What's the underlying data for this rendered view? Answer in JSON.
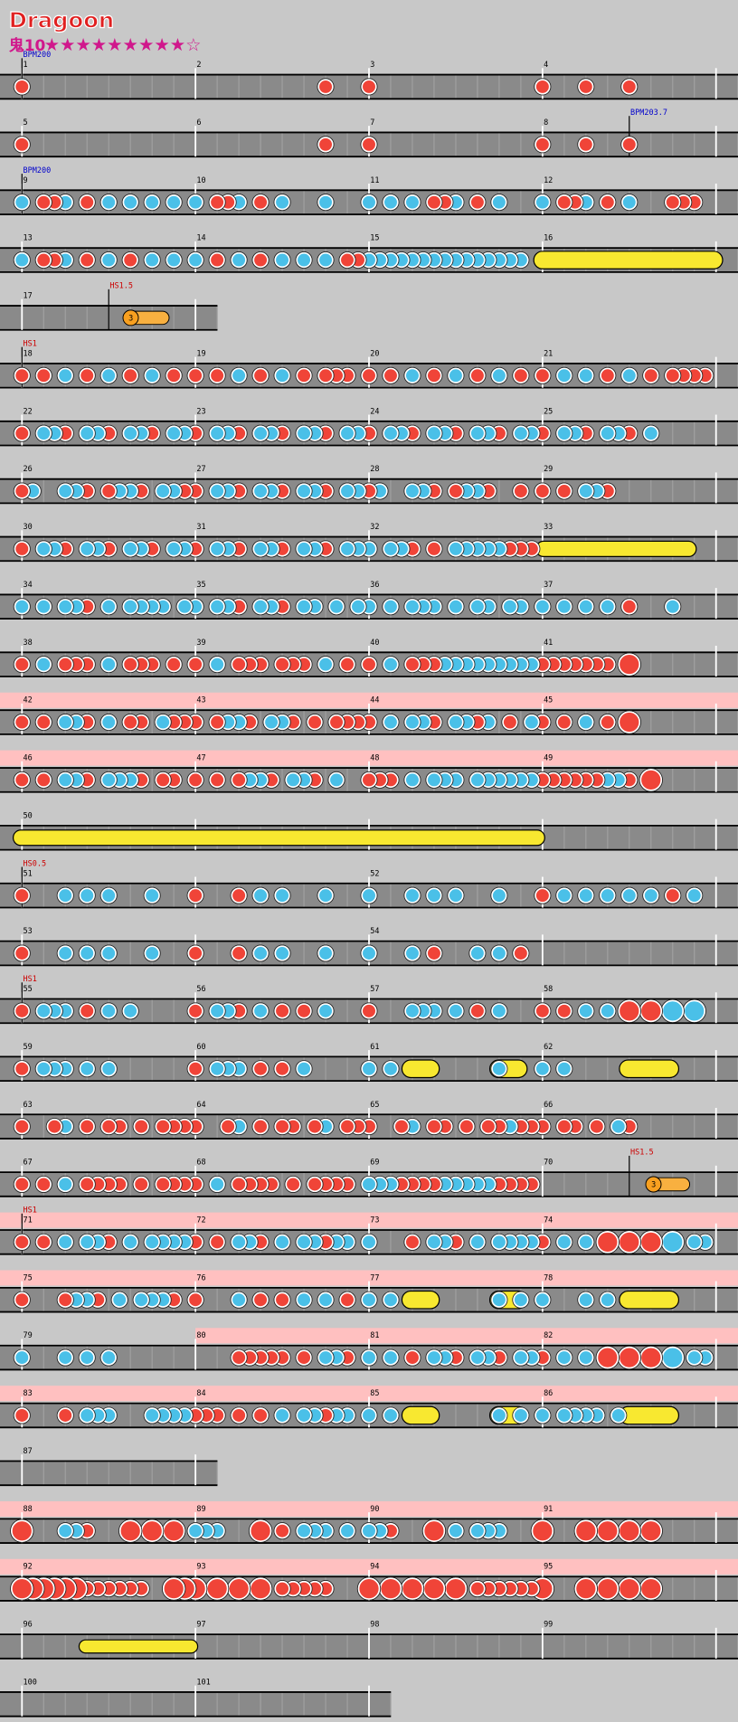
{
  "header": {
    "title": "Dragoon",
    "level": "鬼10",
    "stars": "★★★★★★★★★☆"
  },
  "rows": [
    {
      "measures": [
        1,
        2,
        3,
        4
      ],
      "marks": [
        "BPM200"
      ]
    },
    {
      "measures": [
        5,
        6,
        7,
        8
      ],
      "marks": [
        "BPM203.7"
      ]
    },
    {
      "measures": [
        9,
        10,
        11,
        12
      ],
      "marks": [
        "BPM200"
      ]
    },
    {
      "measures": [
        13,
        14,
        15,
        16
      ],
      "marks": []
    },
    {
      "measures": [
        17
      ],
      "marks": [
        "HS1.5"
      ],
      "balloon": "3"
    },
    {
      "measures": [
        18,
        19,
        20,
        21
      ],
      "marks": [
        "HS1"
      ]
    },
    {
      "measures": [
        22,
        23,
        24,
        25
      ],
      "marks": []
    },
    {
      "measures": [
        26,
        27,
        28,
        29
      ],
      "marks": []
    },
    {
      "measures": [
        30,
        31,
        32,
        33
      ],
      "marks": []
    },
    {
      "measures": [
        34,
        35,
        36,
        37
      ],
      "marks": []
    },
    {
      "measures": [
        38,
        39,
        40,
        41
      ],
      "marks": []
    },
    {
      "measures": [
        42,
        43,
        44,
        45
      ],
      "marks": []
    },
    {
      "measures": [
        46,
        47,
        48,
        49
      ],
      "marks": []
    },
    {
      "measures": [
        50
      ],
      "marks": []
    },
    {
      "measures": [
        51,
        52
      ],
      "marks": [
        "HS0.5"
      ]
    },
    {
      "measures": [
        53,
        54
      ],
      "marks": []
    },
    {
      "measures": [
        55,
        56,
        57,
        58
      ],
      "marks": [
        "HS1"
      ]
    },
    {
      "measures": [
        59,
        60,
        61,
        62
      ],
      "marks": []
    },
    {
      "measures": [
        63,
        64,
        65,
        66
      ],
      "marks": []
    },
    {
      "measures": [
        67,
        68,
        69,
        70
      ],
      "marks": [
        "HS1.5"
      ],
      "balloon": "3"
    },
    {
      "measures": [
        71,
        72,
        73,
        74
      ],
      "marks": [
        "HS1"
      ]
    },
    {
      "measures": [
        75,
        76,
        77,
        78
      ],
      "marks": []
    },
    {
      "measures": [
        79,
        80,
        81,
        82
      ],
      "marks": []
    },
    {
      "measures": [
        83,
        84,
        85,
        86
      ],
      "marks": []
    },
    {
      "measures": [
        87
      ],
      "marks": []
    },
    {
      "measures": [
        88,
        89,
        90,
        91
      ],
      "marks": []
    },
    {
      "measures": [
        92,
        93,
        94,
        95
      ],
      "marks": []
    },
    {
      "measures": [
        96,
        97,
        98,
        99
      ],
      "marks": []
    },
    {
      "measures": [
        100,
        101
      ],
      "marks": []
    }
  ]
}
